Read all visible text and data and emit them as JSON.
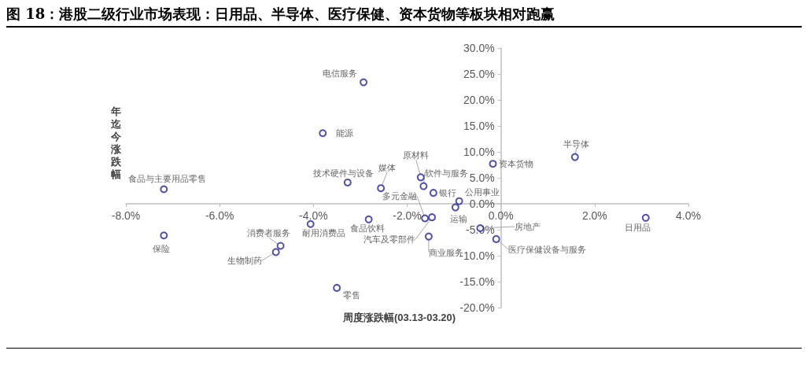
{
  "chart_data": {
    "type": "scatter",
    "title": "图 18：港股二级行业市场表现：日用品、半导体、医疗保健、资本货物等板块相对跑赢",
    "xlabel": "周度涨跌幅(03.13-03.20)",
    "ylabel": "年迄今涨跌幅",
    "color": "#262693",
    "marker": "circle",
    "x": [
      -2.93,
      -3.8,
      -7.19,
      -3.27,
      -2.56,
      -1.71,
      -1.65,
      -1.44,
      -0.89,
      -0.17,
      1.58,
      -1.62,
      -0.97,
      -2.82,
      -4.06,
      -1.47,
      -1.54,
      -0.44,
      -0.1,
      3.09,
      -7.19,
      -4.7,
      -4.8,
      -3.5
    ],
    "values": [
      23.4,
      13.6,
      2.8,
      4.1,
      3.0,
      5.1,
      3.4,
      2.1,
      0.5,
      7.7,
      9.0,
      -2.8,
      -0.7,
      -3.0,
      -3.9,
      -2.6,
      -6.3,
      -4.7,
      -6.8,
      -2.7,
      -6.1,
      -8.1,
      -9.3,
      -16.2
    ],
    "value_labels": [
      "电信服务",
      "能源",
      "食品与主要用品零售",
      "技术硬件与设备",
      "媒体",
      "原材料",
      "软件与服务",
      "银行",
      "公用事业",
      "资本货物",
      "半导体",
      "多元金融",
      "运输",
      "食品饮料",
      "耐用消费品",
      "汽车及零部件",
      "商业服务",
      "房地产",
      "医疗保健设备与服务",
      "日用品",
      "保险",
      "消费者服务",
      "生物制药",
      "零售"
    ],
    "xlim": [
      -8,
      4
    ],
    "xticks": [
      {
        "value": -8,
        "label": "-8.0%"
      },
      {
        "value": -6,
        "label": "-6.0%"
      },
      {
        "value": -4,
        "label": "-4.0%"
      },
      {
        "value": -2,
        "label": "-2.0%"
      },
      {
        "value": 0,
        "label": "0.0%"
      },
      {
        "value": 2,
        "label": "2.0%"
      },
      {
        "value": 4,
        "label": "4.0%"
      }
    ],
    "ylim": [
      -20,
      30
    ],
    "yticks": [
      {
        "value": -20,
        "label": "-20.0%"
      },
      {
        "value": -15,
        "label": "-15.0%"
      },
      {
        "value": -10,
        "label": "-10.0%"
      },
      {
        "value": -5,
        "label": "-5.0%"
      },
      {
        "value": 0,
        "label": "0.0%"
      },
      {
        "value": 5,
        "label": "5.0%"
      },
      {
        "value": 10,
        "label": "10.0%"
      },
      {
        "value": 15,
        "label": "15.0%"
      },
      {
        "value": 20,
        "label": "20.0%"
      },
      {
        "value": 25,
        "label": "25.0%"
      },
      {
        "value": 30,
        "label": "30.0%"
      }
    ]
  }
}
